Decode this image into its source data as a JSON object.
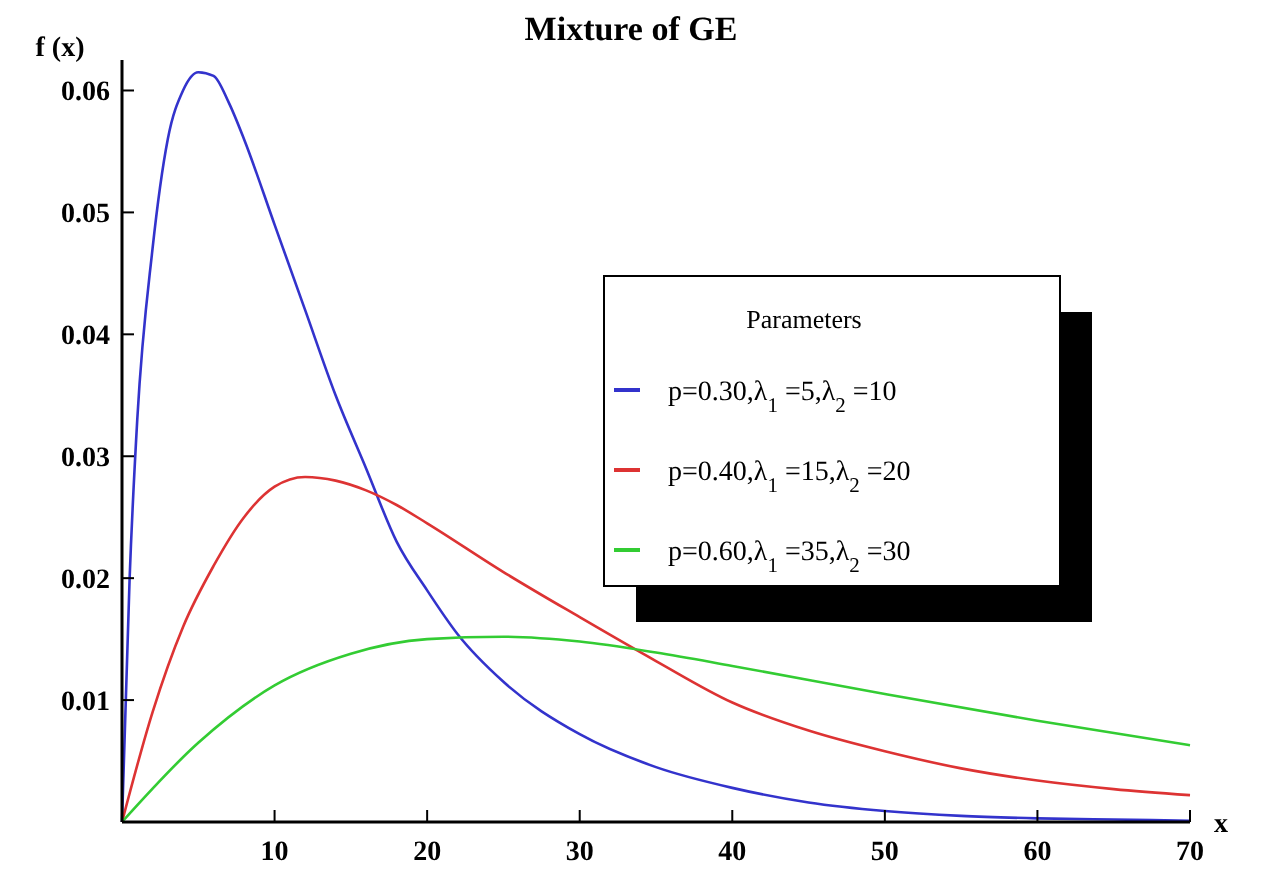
{
  "chart_data": {
    "type": "line",
    "title": "Mixture of GE",
    "xlabel": "x",
    "ylabel": "f (x)",
    "legend_title": "Parameters",
    "legend": "right",
    "grid": false,
    "marker": "none",
    "line_style": "solid",
    "xlim": [
      0,
      70
    ],
    "xticks": [
      10,
      20,
      30,
      40,
      50,
      60,
      70
    ],
    "ylim": [
      0,
      0.0625
    ],
    "yticks": [
      0.01,
      0.02,
      0.03,
      0.04,
      0.05,
      0.06
    ],
    "series": [
      {
        "name": "p=0.30,λ$_{1}$ =5,λ$_{2}$ =10",
        "color": "#3333cc",
        "x": [
          0,
          0.5,
          1,
          2,
          3,
          4,
          5,
          6,
          7,
          8,
          10,
          12,
          14,
          16,
          18,
          20,
          22,
          25,
          30,
          35,
          40,
          45,
          50,
          55,
          60,
          65,
          70
        ],
        "values": [
          0,
          0.02,
          0.033,
          0.047,
          0.056,
          0.06,
          0.0615,
          0.0612,
          0.059,
          0.056,
          0.049,
          0.042,
          0.035,
          0.029,
          0.023,
          0.019,
          0.0154,
          0.0115,
          0.0072,
          0.0045,
          0.0028,
          0.0016,
          0.0009,
          0.0005,
          0.0003,
          0.0002,
          0.0001
        ]
      },
      {
        "name": "p=0.40,λ$_{1}$ =15,λ$_{2}$ =20",
        "color": "#dd3333",
        "x": [
          0,
          2,
          4,
          6,
          8,
          10,
          12,
          14,
          16,
          18,
          20,
          25,
          30,
          35,
          40,
          45,
          50,
          55,
          60,
          65,
          70
        ],
        "values": [
          0,
          0.009,
          0.016,
          0.021,
          0.025,
          0.0275,
          0.0283,
          0.028,
          0.0272,
          0.026,
          0.0245,
          0.0205,
          0.0168,
          0.0132,
          0.0098,
          0.0075,
          0.0058,
          0.0044,
          0.0034,
          0.0027,
          0.0022
        ]
      },
      {
        "name": "p=0.60,λ$_{1}$ =35,λ$_{2}$ =30",
        "color": "#33cc33",
        "x": [
          0,
          5,
          10,
          15,
          20,
          25,
          30,
          35,
          40,
          50,
          60,
          70
        ],
        "values": [
          0,
          0.0065,
          0.0112,
          0.0138,
          0.015,
          0.0152,
          0.0148,
          0.0139,
          0.0128,
          0.0105,
          0.0083,
          0.0063
        ]
      }
    ]
  }
}
